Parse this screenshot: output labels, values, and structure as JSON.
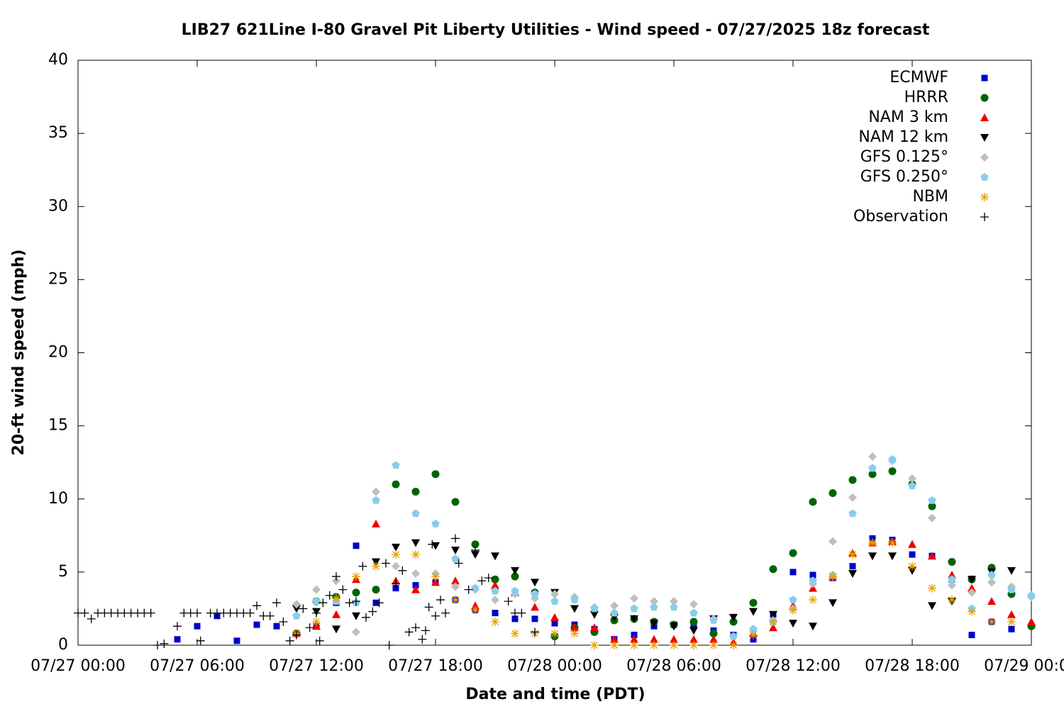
{
  "chart_data": {
    "type": "scatter",
    "title": "LIB27 621Line I-80 Gravel Pit Liberty Utilities - Wind speed - 07/27/2025 18z forecast",
    "xlabel": "Date and time (PDT)",
    "ylabel": "20-ft wind speed (mph)",
    "xlim": [
      "07/27 00:00",
      "07/29 00:00"
    ],
    "xticks": [
      "07/27 00:00",
      "07/27 06:00",
      "07/27 12:00",
      "07/27 18:00",
      "07/28 00:00",
      "07/28 06:00",
      "07/28 12:00",
      "07/28 18:00",
      "07/29 00:00"
    ],
    "ylim": [
      0,
      40
    ],
    "yticks": [
      0,
      5,
      10,
      15,
      20,
      25,
      30,
      35,
      40
    ],
    "grid": false,
    "legend": "top-right",
    "x": [
      "07/27 05:00",
      "07/27 06:00",
      "07/27 07:00",
      "07/27 08:00",
      "07/27 09:00",
      "07/27 10:00",
      "07/27 11:00",
      "07/27 12:00",
      "07/27 13:00",
      "07/27 14:00",
      "07/27 15:00",
      "07/27 16:00",
      "07/27 17:00",
      "07/27 18:00",
      "07/27 19:00",
      "07/27 20:00",
      "07/27 21:00",
      "07/27 22:00",
      "07/27 23:00",
      "07/28 00:00",
      "07/28 01:00",
      "07/28 02:00",
      "07/28 03:00",
      "07/28 04:00",
      "07/28 05:00",
      "07/28 06:00",
      "07/28 07:00",
      "07/28 08:00",
      "07/28 09:00",
      "07/28 10:00",
      "07/28 11:00",
      "07/28 12:00",
      "07/28 13:00",
      "07/28 14:00",
      "07/28 15:00",
      "07/28 16:00",
      "07/28 17:00",
      "07/28 18:00",
      "07/28 19:00",
      "07/28 20:00",
      "07/28 21:00",
      "07/28 22:00",
      "07/28 23:00",
      "07/29 00:00"
    ],
    "series": [
      {
        "name": "ECMWF",
        "color": "#0000cc",
        "marker": "square",
        "values": [
          0.4,
          1.3,
          2.0,
          0.3,
          1.4,
          1.3,
          0.8,
          1.3,
          2.9,
          6.8,
          2.9,
          3.9,
          4.1,
          4.3,
          3.1,
          2.4,
          2.2,
          1.8,
          1.8,
          1.5,
          1.4,
          1.1,
          0.4,
          0.7,
          1.3,
          1.4,
          1.3,
          1.0,
          0.7,
          0.4,
          2.1,
          5.0,
          4.8,
          4.6,
          5.4,
          7.3,
          7.2,
          6.2,
          6.1,
          4.5,
          0.7,
          1.6,
          1.1,
          null
        ]
      },
      {
        "name": "HRRR",
        "color": "#006400",
        "marker": "circle",
        "values": [
          null,
          null,
          null,
          null,
          null,
          null,
          0.8,
          3.0,
          3.3,
          3.6,
          3.8,
          11.0,
          10.5,
          11.7,
          9.8,
          6.9,
          4.5,
          4.7,
          3.6,
          0.6,
          1.2,
          0.9,
          1.7,
          1.8,
          1.6,
          1.4,
          1.6,
          0.8,
          1.6,
          2.9,
          5.2,
          6.3,
          9.8,
          10.4,
          11.3,
          11.7,
          11.9,
          11.0,
          9.5,
          5.7,
          4.5,
          5.3,
          3.5,
          1.3
        ]
      },
      {
        "name": "NAM 3 km",
        "color": "#ee0000",
        "marker": "triangle",
        "values": [
          null,
          null,
          null,
          null,
          null,
          null,
          0.8,
          1.3,
          2.1,
          4.5,
          8.3,
          4.4,
          3.8,
          4.3,
          4.4,
          2.7,
          4.1,
          3.6,
          2.6,
          1.9,
          1.2,
          1.2,
          0.4,
          0.4,
          0.4,
          0.4,
          0.4,
          0.4,
          0.2,
          0.8,
          1.2,
          2.7,
          3.9,
          4.7,
          6.3,
          7.0,
          7.1,
          6.9,
          6.1,
          4.8,
          3.9,
          3.0,
          2.1,
          1.6
        ]
      },
      {
        "name": "NAM 12 km",
        "color": "#000000",
        "marker": "triangle-down",
        "values": [
          null,
          null,
          null,
          null,
          null,
          null,
          2.5,
          2.3,
          1.1,
          2.0,
          5.7,
          6.7,
          7.0,
          6.8,
          6.5,
          6.2,
          6.1,
          5.1,
          4.3,
          3.6,
          2.5,
          2.1,
          1.9,
          1.8,
          1.5,
          1.3,
          1.0,
          1.8,
          1.9,
          2.3,
          2.1,
          1.5,
          1.3,
          2.9,
          4.9,
          6.1,
          6.1,
          5.1,
          2.7,
          3.0,
          4.5,
          5.0,
          5.1,
          null
        ]
      },
      {
        "name": "GFS 0.125°",
        "color": "#bebebe",
        "marker": "diamond",
        "values": [
          null,
          null,
          null,
          null,
          null,
          null,
          2.8,
          3.8,
          4.4,
          0.9,
          10.5,
          5.4,
          4.9,
          4.9,
          4.0,
          3.8,
          3.1,
          3.5,
          3.2,
          3.5,
          3.3,
          2.6,
          2.7,
          3.2,
          3.0,
          3.0,
          2.8,
          1.8,
          0.6,
          1.0,
          1.7,
          2.5,
          4.2,
          7.1,
          10.1,
          12.9,
          12.6,
          11.4,
          8.7,
          4.1,
          3.6,
          4.3,
          4.0,
          3.3
        ]
      },
      {
        "name": "GFS 0.250°",
        "color": "#87ceeb",
        "marker": "pentagon",
        "values": [
          null,
          null,
          null,
          null,
          null,
          null,
          2.0,
          3.0,
          3.0,
          2.9,
          9.9,
          12.3,
          9.0,
          8.3,
          5.9,
          3.9,
          3.7,
          3.7,
          3.5,
          3.0,
          3.1,
          2.5,
          2.2,
          2.5,
          2.6,
          2.6,
          2.2,
          1.7,
          0.6,
          1.1,
          1.6,
          3.1,
          4.4,
          4.8,
          9.0,
          12.1,
          12.7,
          10.9,
          9.9,
          4.5,
          2.5,
          4.8,
          3.8,
          3.4
        ]
      },
      {
        "name": "NBM",
        "color": "#e8a000",
        "marker": "star",
        "values": [
          null,
          null,
          null,
          null,
          null,
          null,
          0.8,
          1.6,
          3.2,
          4.7,
          5.4,
          6.2,
          6.2,
          4.7,
          3.1,
          2.4,
          1.6,
          0.8,
          0.8,
          0.8,
          0.8,
          0,
          0,
          0,
          0,
          0,
          0,
          0,
          0,
          0.7,
          1.6,
          2.4,
          3.1,
          4.7,
          6.2,
          7.0,
          7.0,
          5.4,
          3.9,
          3.1,
          2.3,
          1.6,
          1.6,
          null
        ]
      },
      {
        "name": "Observation",
        "color": "#000000",
        "marker": "plus",
        "x": [
          "07/27 00:00",
          "07/27 00:20",
          "07/27 00:40",
          "07/27 01:00",
          "07/27 01:20",
          "07/27 01:40",
          "07/27 02:00",
          "07/27 02:20",
          "07/27 02:40",
          "07/27 03:00",
          "07/27 03:20",
          "07/27 03:40",
          "07/27 04:00",
          "07/27 04:20",
          "07/27 05:00",
          "07/27 05:20",
          "07/27 05:40",
          "07/27 06:00",
          "07/27 06:10",
          "07/27 06:40",
          "07/27 07:00",
          "07/27 07:20",
          "07/27 07:40",
          "07/27 08:00",
          "07/27 08:20",
          "07/27 08:40",
          "07/27 09:00",
          "07/27 09:20",
          "07/27 09:40",
          "07/27 10:00",
          "07/27 10:20",
          "07/27 10:40",
          "07/27 11:00",
          "07/27 11:20",
          "07/27 11:40",
          "07/27 12:00",
          "07/27 12:10",
          "07/27 12:20",
          "07/27 12:40",
          "07/27 13:00",
          "07/27 13:20",
          "07/27 13:40",
          "07/27 14:00",
          "07/27 14:20",
          "07/27 14:30",
          "07/27 14:50",
          "07/27 15:10",
          "07/27 15:30",
          "07/27 15:40",
          "07/27 16:00",
          "07/27 16:20",
          "07/27 16:40",
          "07/27 17:00",
          "07/27 17:20",
          "07/27 17:30",
          "07/27 17:40",
          "07/27 17:50",
          "07/27 18:00",
          "07/27 18:15",
          "07/27 18:30",
          "07/27 19:00",
          "07/27 19:10",
          "07/27 19:40",
          "07/27 20:00",
          "07/27 20:20",
          "07/27 20:40",
          "07/27 21:40",
          "07/27 22:00",
          "07/27 22:20",
          "07/27 23:00"
        ],
        "values": [
          2.2,
          2.2,
          1.8,
          2.2,
          2.2,
          2.2,
          2.2,
          2.2,
          2.2,
          2.2,
          2.2,
          2.2,
          0.0,
          0.1,
          1.3,
          2.2,
          2.2,
          2.2,
          0.3,
          2.2,
          2.2,
          2.2,
          2.2,
          2.2,
          2.2,
          2.2,
          2.7,
          2.0,
          2.0,
          2.9,
          1.6,
          0.3,
          0.7,
          2.5,
          1.2,
          2.2,
          0.3,
          2.9,
          3.4,
          4.7,
          3.8,
          2.9,
          3.0,
          5.4,
          1.9,
          2.3,
          2.9,
          5.6,
          0.0,
          4.2,
          5.1,
          0.9,
          1.2,
          0.4,
          1.0,
          2.6,
          6.9,
          2.0,
          3.1,
          2.2,
          7.3,
          5.6,
          3.8,
          6.5,
          4.4,
          4.6,
          3.0,
          2.2,
          2.2,
          0.9
        ]
      }
    ]
  }
}
